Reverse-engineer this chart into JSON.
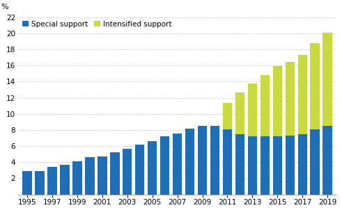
{
  "years": [
    1995,
    1996,
    1997,
    1998,
    1999,
    2000,
    2001,
    2002,
    2003,
    2004,
    2005,
    2006,
    2007,
    2008,
    2009,
    2010,
    2011,
    2012,
    2013,
    2014,
    2015,
    2016,
    2017,
    2018,
    2019
  ],
  "special_support": [
    2.9,
    2.9,
    3.4,
    3.7,
    4.1,
    4.6,
    4.7,
    5.2,
    5.7,
    6.2,
    6.6,
    7.2,
    7.6,
    8.2,
    8.5,
    8.5,
    8.1,
    7.5,
    7.2,
    7.2,
    7.2,
    7.3,
    7.5,
    8.1,
    8.5
  ],
  "intensified_support": [
    0,
    0,
    0,
    0,
    0,
    0,
    0,
    0,
    0,
    0,
    0,
    0,
    0,
    0,
    0,
    0,
    3.3,
    5.2,
    6.6,
    7.6,
    8.7,
    9.2,
    9.8,
    10.7,
    11.6
  ],
  "special_color": "#1f6eb5",
  "intensified_color": "#c8d941",
  "ylabel": "%",
  "ylim": [
    0,
    22
  ],
  "yticks": [
    0,
    2,
    4,
    6,
    8,
    10,
    12,
    14,
    16,
    18,
    20,
    22
  ],
  "xticks": [
    1995,
    1997,
    1999,
    2001,
    2003,
    2005,
    2007,
    2009,
    2011,
    2013,
    2015,
    2017,
    2019
  ],
  "legend_special": "Special support",
  "legend_intensified": "Intensified support",
  "grid_color": "#d0d0d0",
  "background_color": "#ffffff",
  "bar_width": 0.75
}
